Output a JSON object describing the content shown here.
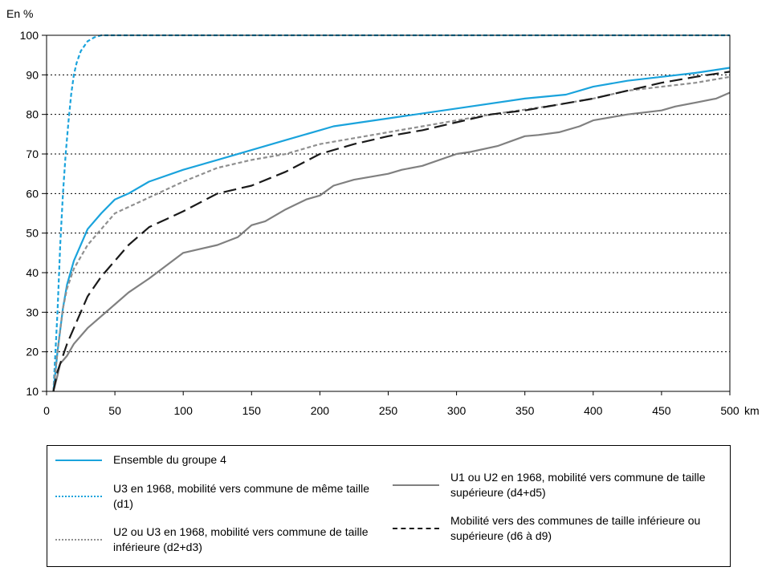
{
  "chart_data": {
    "type": "line",
    "title": "",
    "ylabel": "En %",
    "xlabel": "km",
    "xlim": [
      0,
      500
    ],
    "ylim": [
      10,
      100
    ],
    "x_ticks": [
      0,
      50,
      100,
      150,
      200,
      250,
      300,
      350,
      400,
      450,
      500
    ],
    "y_ticks": [
      10,
      20,
      30,
      40,
      50,
      60,
      70,
      80,
      90,
      100
    ],
    "grid": "horizontal-dotted",
    "legend_position": "bottom",
    "series": [
      {
        "key": "ensemble",
        "name": "Ensemble du groupe 4",
        "color": "#1aa3dc",
        "style": "solid",
        "points": [
          [
            5,
            10
          ],
          [
            8,
            20
          ],
          [
            12,
            31
          ],
          [
            15,
            37
          ],
          [
            20,
            43
          ],
          [
            30,
            51
          ],
          [
            40,
            55
          ],
          [
            50,
            58.5
          ],
          [
            60,
            60
          ],
          [
            75,
            63
          ],
          [
            100,
            66
          ],
          [
            125,
            68.5
          ],
          [
            150,
            71
          ],
          [
            175,
            73.5
          ],
          [
            200,
            76
          ],
          [
            210,
            77
          ],
          [
            250,
            79
          ],
          [
            300,
            81.5
          ],
          [
            350,
            84
          ],
          [
            380,
            85
          ],
          [
            390,
            86
          ],
          [
            400,
            87
          ],
          [
            425,
            88.5
          ],
          [
            450,
            89.5
          ],
          [
            475,
            90.5
          ],
          [
            500,
            91.8
          ]
        ]
      },
      {
        "key": "d1",
        "name": "U3 en 1968, mobilité vers commune de même taille (d1)",
        "color": "#1aa3dc",
        "style": "dotted",
        "points": [
          [
            5,
            10
          ],
          [
            8,
            30
          ],
          [
            10,
            47
          ],
          [
            12,
            60
          ],
          [
            14,
            70
          ],
          [
            16,
            78
          ],
          [
            18,
            85
          ],
          [
            20,
            90
          ],
          [
            22,
            93
          ],
          [
            25,
            96
          ],
          [
            30,
            98.5
          ],
          [
            35,
            99.5
          ],
          [
            40,
            100
          ],
          [
            500,
            100
          ]
        ]
      },
      {
        "key": "d2d3",
        "name": "U2 ou U3 en 1968, mobilité vers commune de taille inférieure (d2+d3)",
        "color": "#909090",
        "style": "dotted",
        "points": [
          [
            5,
            10
          ],
          [
            8,
            20
          ],
          [
            12,
            31
          ],
          [
            15,
            36
          ],
          [
            20,
            41
          ],
          [
            30,
            47
          ],
          [
            40,
            51
          ],
          [
            50,
            55
          ],
          [
            75,
            59
          ],
          [
            100,
            63
          ],
          [
            125,
            66.5
          ],
          [
            150,
            68.5
          ],
          [
            175,
            70
          ],
          [
            200,
            72.5
          ],
          [
            225,
            74
          ],
          [
            250,
            75.5
          ],
          [
            275,
            77
          ],
          [
            300,
            78.5
          ],
          [
            325,
            80
          ],
          [
            350,
            81.2
          ],
          [
            375,
            82.5
          ],
          [
            400,
            84
          ],
          [
            425,
            86
          ],
          [
            450,
            87
          ],
          [
            475,
            88
          ],
          [
            500,
            89.5
          ]
        ]
      },
      {
        "key": "d4d5",
        "name": "U1 ou U2 en 1968, mobilité vers commune de taille supérieure (d4+d5)",
        "color": "#808080",
        "style": "solid",
        "points": [
          [
            5,
            10
          ],
          [
            8,
            14
          ],
          [
            10,
            17
          ],
          [
            15,
            19
          ],
          [
            20,
            22
          ],
          [
            30,
            26
          ],
          [
            40,
            29
          ],
          [
            50,
            32
          ],
          [
            60,
            35
          ],
          [
            75,
            38.5
          ],
          [
            100,
            45
          ],
          [
            125,
            47
          ],
          [
            140,
            49
          ],
          [
            150,
            52
          ],
          [
            160,
            53
          ],
          [
            175,
            56
          ],
          [
            190,
            58.5
          ],
          [
            200,
            59.5
          ],
          [
            210,
            62
          ],
          [
            225,
            63.5
          ],
          [
            250,
            65
          ],
          [
            260,
            66
          ],
          [
            275,
            67
          ],
          [
            300,
            70
          ],
          [
            310,
            70.5
          ],
          [
            330,
            72
          ],
          [
            350,
            74.5
          ],
          [
            360,
            74.8
          ],
          [
            375,
            75.5
          ],
          [
            390,
            77
          ],
          [
            400,
            78.5
          ],
          [
            425,
            80
          ],
          [
            450,
            81
          ],
          [
            460,
            82
          ],
          [
            475,
            83
          ],
          [
            490,
            84
          ],
          [
            500,
            85.5
          ]
        ]
      },
      {
        "key": "d6d9",
        "name": "Mobilité vers des communes de taille inférieure ou supérieure (d6 à d9)",
        "color": "#1a1a1a",
        "style": "dashed",
        "points": [
          [
            5,
            10
          ],
          [
            8,
            15
          ],
          [
            12,
            19
          ],
          [
            15,
            22
          ],
          [
            20,
            26
          ],
          [
            30,
            34
          ],
          [
            40,
            39
          ],
          [
            50,
            43
          ],
          [
            60,
            47
          ],
          [
            75,
            51.5
          ],
          [
            100,
            55.5
          ],
          [
            125,
            60
          ],
          [
            150,
            62
          ],
          [
            175,
            65.5
          ],
          [
            200,
            70
          ],
          [
            225,
            72.5
          ],
          [
            250,
            74.5
          ],
          [
            275,
            76
          ],
          [
            300,
            78
          ],
          [
            325,
            80
          ],
          [
            350,
            81
          ],
          [
            375,
            82.5
          ],
          [
            400,
            84
          ],
          [
            425,
            86
          ],
          [
            450,
            88
          ],
          [
            475,
            89.5
          ],
          [
            500,
            90.8
          ]
        ]
      }
    ]
  },
  "legend": {
    "col1": [
      "ensemble",
      "d1",
      "d2d3"
    ],
    "col2": [
      "d4d5",
      "d6d9"
    ]
  }
}
